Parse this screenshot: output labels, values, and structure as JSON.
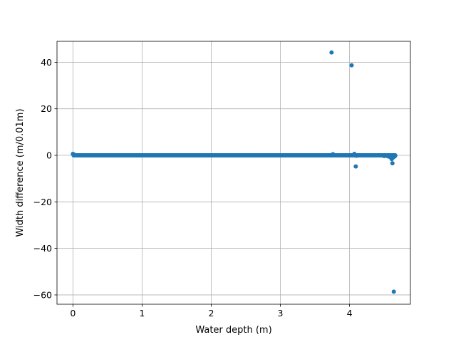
{
  "chart_data": {
    "type": "scatter",
    "title": "",
    "xlabel": "Water depth (m)",
    "ylabel": "Width difference (m/0.01m)",
    "xlim": [
      -0.23,
      4.88
    ],
    "ylim": [
      -64.0,
      49.0
    ],
    "xticks": [
      0,
      1,
      2,
      3,
      4
    ],
    "yticks": [
      -60,
      -40,
      -20,
      0,
      20,
      40
    ],
    "xtick_labels": [
      "0",
      "1",
      "2",
      "3",
      "4"
    ],
    "ytick_labels": [
      "−60",
      "−40",
      "−20",
      "0",
      "20",
      "40"
    ],
    "grid": true,
    "color": "#1f77b4",
    "dense_band": {
      "x_start": 0.01,
      "x_end": 4.66,
      "x_step": 0.01,
      "y": 0.0
    },
    "series": [
      {
        "points": [
          {
            "x": 0.0,
            "y": 0.6
          },
          {
            "x": 0.02,
            "y": 0.3
          },
          {
            "x": 3.74,
            "y": 44.2
          },
          {
            "x": 3.76,
            "y": 0.5
          },
          {
            "x": 4.03,
            "y": 38.7
          },
          {
            "x": 4.07,
            "y": 0.6
          },
          {
            "x": 4.09,
            "y": -4.8
          },
          {
            "x": 4.1,
            "y": -0.2
          },
          {
            "x": 4.5,
            "y": -0.3
          },
          {
            "x": 4.55,
            "y": -0.4
          },
          {
            "x": 4.58,
            "y": -0.6
          },
          {
            "x": 4.6,
            "y": -1.0
          },
          {
            "x": 4.61,
            "y": -1.6
          },
          {
            "x": 4.62,
            "y": -3.4
          },
          {
            "x": 4.63,
            "y": -0.9
          },
          {
            "x": 4.64,
            "y": -58.6
          },
          {
            "x": 4.65,
            "y": -0.5
          },
          {
            "x": 4.66,
            "y": -0.2
          }
        ]
      }
    ]
  }
}
